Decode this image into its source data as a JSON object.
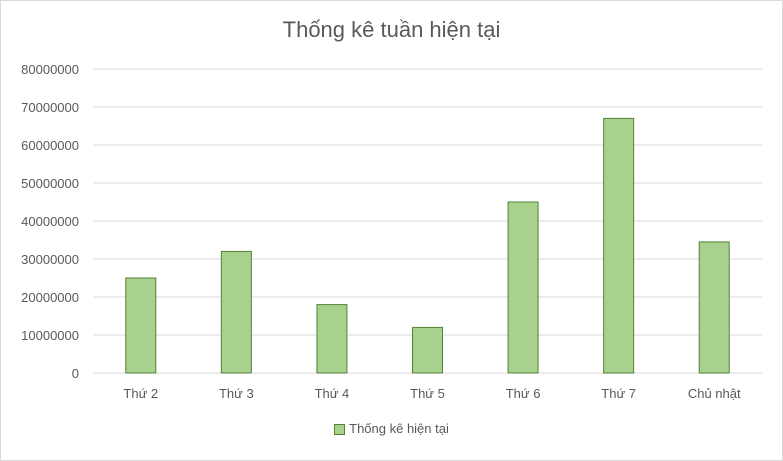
{
  "chart_data": {
    "type": "bar",
    "title": "Thống kê tuần hiện tại",
    "categories": [
      "Thứ 2",
      "Thứ 3",
      "Thứ 4",
      "Thứ 5",
      "Thứ 6",
      "Thứ 7",
      "Chủ nhật"
    ],
    "series": [
      {
        "name": "Thống kê hiện tại",
        "values": [
          25000000,
          32000000,
          18000000,
          12000000,
          45000000,
          67000000,
          34500000
        ],
        "color": "#a9d18e",
        "border_color": "#548235"
      }
    ],
    "y_ticks": [
      "0",
      "10000000",
      "20000000",
      "30000000",
      "40000000",
      "50000000",
      "60000000",
      "70000000",
      "80000000"
    ],
    "ylim": [
      0,
      80000000
    ],
    "grid": true,
    "legend_position": "bottom"
  }
}
